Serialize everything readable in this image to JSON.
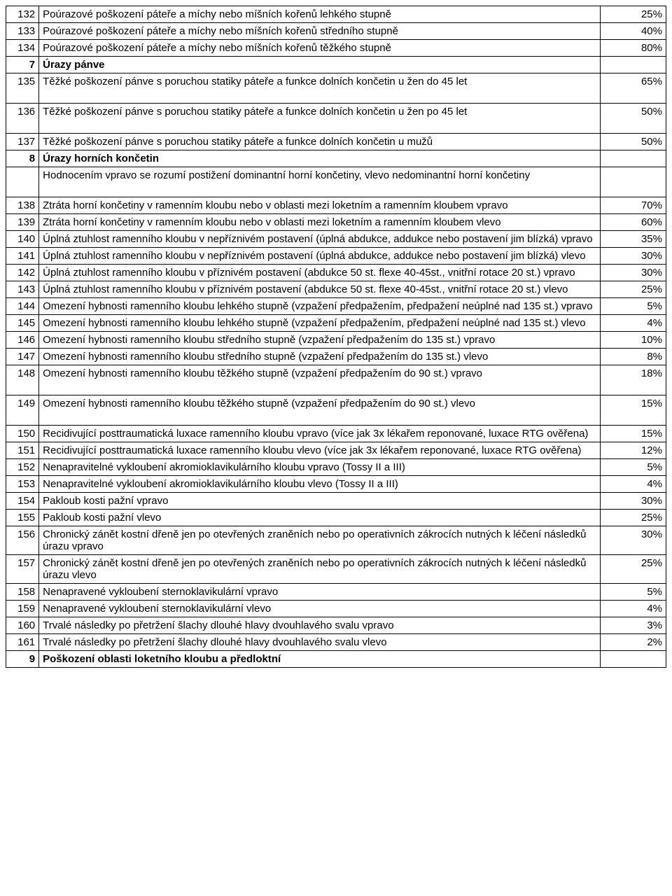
{
  "rows": [
    {
      "n": "132",
      "d": "Poúrazové poškození páteře a míchy nebo míšních kořenů lehkého stupně",
      "p": "25%"
    },
    {
      "n": "133",
      "d": "Poúrazové poškození páteře a míchy nebo míšních kořenů středního stupně",
      "p": "40%"
    },
    {
      "n": "134",
      "d": "Poúrazové poškození páteře a míchy nebo míšních kořenů těžkého stupně",
      "p": "80%"
    },
    {
      "n": "7",
      "d": "Úrazy pánve",
      "p": "",
      "section": true
    },
    {
      "n": "135",
      "d": "Těžké poškození pánve s poruchou statiky páteře a funkce dolních končetin u žen do 45 let",
      "p": "65%",
      "tall": true
    },
    {
      "n": "136",
      "d": "Těžké poškození pánve s poruchou statiky páteře a funkce dolních končetin u žen po 45 let",
      "p": "50%",
      "tall": true
    },
    {
      "n": "137",
      "d": "Těžké poškození pánve s poruchou statiky páteře a funkce dolních končetin u mužů",
      "p": "50%"
    },
    {
      "n": "8",
      "d": "Úrazy horních končetin",
      "p": "",
      "section": true
    },
    {
      "n": "",
      "d": "Hodnocením vpravo se rozumí postižení dominantní horní končetiny, vlevo nedominantní horní končetiny",
      "p": "",
      "tall": true
    },
    {
      "n": "138",
      "d": "Ztráta horní končetiny v ramenním kloubu nebo v oblasti mezi loketním a ramenním kloubem vpravo",
      "p": "70%"
    },
    {
      "n": "139",
      "d": "Ztráta horní končetiny v ramenním kloubu nebo v oblasti mezi loketním a ramenním kloubem vlevo",
      "p": "60%"
    },
    {
      "n": "140",
      "d": "Úplná ztuhlost ramenního kloubu v nepříznivém postavení (úplná abdukce, addukce nebo postavení jim blízká) vpravo",
      "p": "35%"
    },
    {
      "n": "141",
      "d": "Úplná ztuhlost ramenního kloubu v nepříznivém postavení (úplná abdukce, addukce nebo postavení jim blízká) vlevo",
      "p": "30%"
    },
    {
      "n": "142",
      "d": "Úplná ztuhlost ramenního kloubu v příznivém postavení (abdukce 50 st. flexe 40-45st., vnitřní rotace 20 st.) vpravo",
      "p": "30%"
    },
    {
      "n": "143",
      "d": "Úplná ztuhlost ramenního kloubu v příznivém postavení (abdukce 50 st. flexe 40-45st., vnitřní rotace 20 st.) vlevo",
      "p": "25%"
    },
    {
      "n": "144",
      "d": "Omezení hybnosti ramenního kloubu lehkého stupně (vzpažení předpažením, předpažení neúplné nad 135 st.) vpravo",
      "p": "5%"
    },
    {
      "n": "145",
      "d": "Omezení hybnosti ramenního kloubu lehkého stupně (vzpažení předpažením, předpažení neúplné nad 135 st.) vlevo",
      "p": "4%"
    },
    {
      "n": "146",
      "d": "Omezení hybnosti ramenního kloubu středního stupně (vzpažení předpažením do 135 st.) vpravo",
      "p": "10%"
    },
    {
      "n": "147",
      "d": "Omezení hybnosti ramenního kloubu středního stupně (vzpažení předpažením do 135 st.) vlevo",
      "p": "8%"
    },
    {
      "n": "148",
      "d": "Omezení hybnosti ramenního kloubu těžkého stupně (vzpažení předpažením do 90 st.) vpravo",
      "p": "18%",
      "tall": true
    },
    {
      "n": "149",
      "d": "Omezení hybnosti ramenního kloubu těžkého stupně (vzpažení předpažením do 90 st.) vlevo",
      "p": "15%",
      "tall": true
    },
    {
      "n": "150",
      "d": "Recidivující posttraumatická luxace ramenního kloubu vpravo (více jak 3x lékařem reponované, luxace RTG ověřena)",
      "p": "15%"
    },
    {
      "n": "151",
      "d": "Recidivující posttraumatická luxace ramenního kloubu vlevo (více jak 3x lékařem reponované, luxace RTG ověřena)",
      "p": "12%"
    },
    {
      "n": "152",
      "d": "Nenapravitelné vykloubení akromioklavikulárního kloubu vpravo (Tossy II a III)",
      "p": "5%"
    },
    {
      "n": "153",
      "d": "Nenapravitelné vykloubení akromioklavikulárního kloubu vlevo (Tossy II a III)",
      "p": "4%"
    },
    {
      "n": "154",
      "d": "Pakloub kosti pažní vpravo",
      "p": "30%"
    },
    {
      "n": "155",
      "d": "Pakloub kosti pažní vlevo",
      "p": "25%"
    },
    {
      "n": "156",
      "d": "Chronický zánět kostní dřeně jen po otevřených zraněních nebo po operativních zákrocích nutných k léčení následků úrazu vpravo",
      "p": "30%"
    },
    {
      "n": "157",
      "d": "Chronický zánět kostní dřeně jen po otevřených zraněních nebo po operativních zákrocích nutných k léčení následků úrazu vlevo",
      "p": "25%"
    },
    {
      "n": "158",
      "d": "Nenapravené vykloubení sternoklavikulární vpravo",
      "p": "5%"
    },
    {
      "n": "159",
      "d": "Nenapravené vykloubení sternoklavikulární vlevo",
      "p": "4%"
    },
    {
      "n": "160",
      "d": "Trvalé následky po přetržení šlachy dlouhé hlavy dvouhlavého svalu vpravo",
      "p": "3%"
    },
    {
      "n": "161",
      "d": "Trvalé následky po přetržení šlachy dlouhé hlavy dvouhlavého svalu vlevo",
      "p": "2%"
    },
    {
      "n": "9",
      "d": "Poškození oblasti loketního kloubu a předloktní",
      "p": "",
      "section": true
    }
  ]
}
